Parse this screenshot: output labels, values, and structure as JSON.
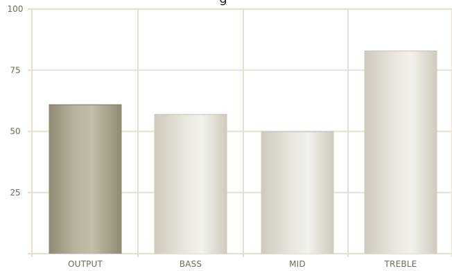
{
  "chart_data": {
    "type": "bar",
    "title_fragment": "g",
    "categories": [
      "OUTPUT",
      "BASS",
      "MID",
      "TREBLE"
    ],
    "values": [
      61,
      57,
      50,
      83
    ],
    "ylim": [
      0,
      100
    ],
    "yticks": [
      25,
      50,
      75,
      100
    ],
    "grid": true,
    "legend": "none",
    "colors": {
      "highlight_bar_dark": "#8f8a72",
      "highlight_bar_light": "#c2bda8",
      "bar_dark": "#cfcabb",
      "bar_light": "#f3f1ec",
      "grid": "#e6e0d3",
      "text": "#6f6a5d"
    }
  }
}
